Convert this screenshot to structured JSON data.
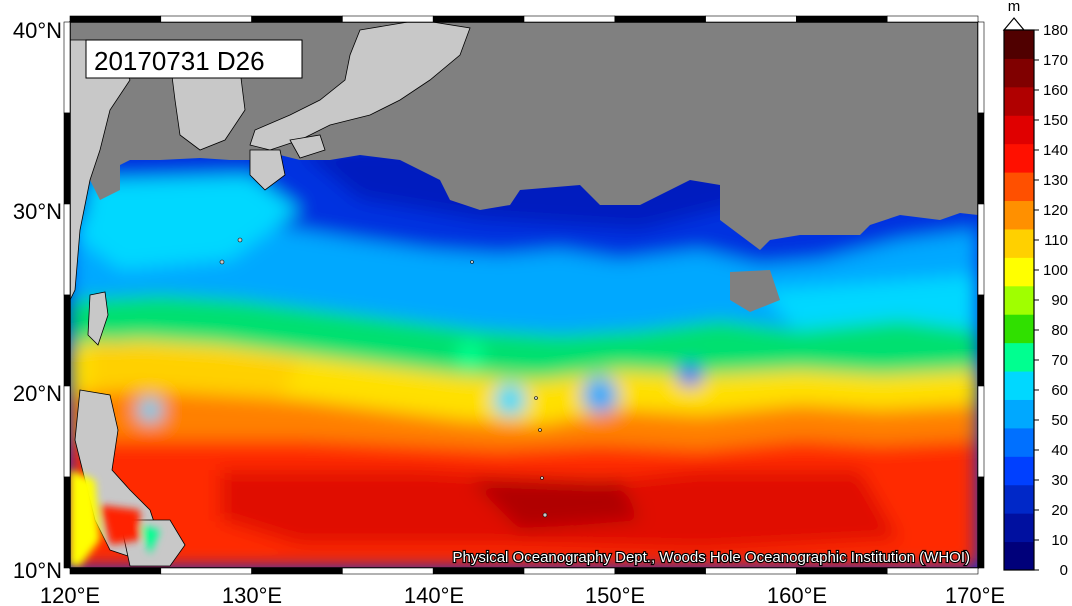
{
  "title": "20170731 D26",
  "credit": "Physical Oceanography Dept., Woods Hole Oceanographic Institution (WHOI)",
  "lon_labels": [
    "120°E",
    "130°E",
    "140°E",
    "150°E",
    "160°E",
    "170°E"
  ],
  "lat_labels": [
    "40°N",
    "30°N",
    "20°N",
    "10°N"
  ],
  "colorbar": {
    "unit": "m",
    "ticks": [
      "0",
      "10",
      "20",
      "30",
      "40",
      "50",
      "60",
      "70",
      "80",
      "90",
      "100",
      "110",
      "120",
      "130",
      "140",
      "150",
      "160",
      "170",
      "180"
    ],
    "colors": [
      "#00007a",
      "#0010a0",
      "#0028c8",
      "#0040ff",
      "#0070ff",
      "#00a8ff",
      "#00d8ff",
      "#00ff90",
      "#30e000",
      "#a0ff00",
      "#ffff00",
      "#ffd000",
      "#ff9000",
      "#ff5000",
      "#ff1000",
      "#e00000",
      "#b00000",
      "#800000",
      "#500000"
    ]
  },
  "chart_data": {
    "type": "heatmap",
    "title": "20170731 D26",
    "xlabel": "",
    "ylabel": "",
    "xlim": [
      120,
      170
    ],
    "ylim": [
      10,
      40
    ],
    "colorbar_range": [
      0,
      180
    ],
    "colorbar_unit": "m",
    "land_color": "#c8c8c8",
    "no_data_color": "#808080"
  }
}
